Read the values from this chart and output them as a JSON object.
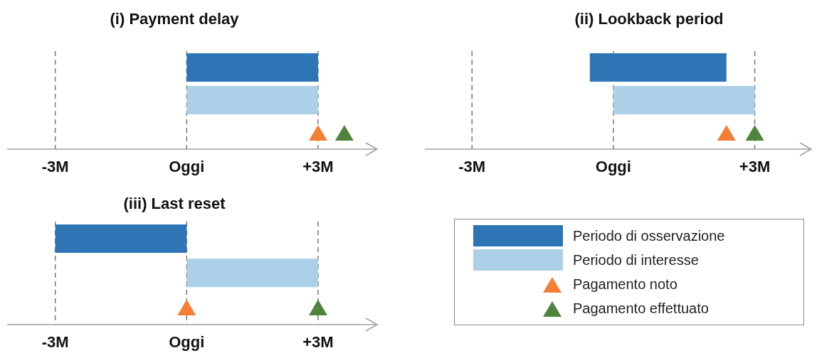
{
  "chart_data": [
    {
      "type": "bar",
      "orientation": "horizontal",
      "title": "(i) Payment delay",
      "categories": [
        null,
        null,
        null
      ],
      "xlim": [
        -4.1,
        4.35
      ],
      "xticks": [
        {
          "value": -3,
          "label": "-3M"
        },
        {
          "value": 0,
          "label": "Oggi"
        },
        {
          "value": 3,
          "label": "+3M"
        }
      ],
      "grid": "x",
      "series": [
        {
          "type": "bar",
          "color": "#2e75b6",
          "values": [
            3,
            null,
            null
          ],
          "base": [
            0,
            null,
            null
          ]
        },
        {
          "type": "bar",
          "color": "#abd0e8",
          "values": [
            null,
            3,
            null
          ],
          "base": [
            null,
            0,
            null
          ]
        },
        {
          "type": "scatter",
          "marker": "triangle",
          "color": "#f47f35",
          "values": [
            null,
            null,
            3
          ]
        },
        {
          "type": "scatter",
          "marker": "triangle",
          "color": "#4e843d",
          "values": [
            null,
            null,
            3.6
          ]
        }
      ]
    },
    {
      "type": "bar",
      "orientation": "horizontal",
      "title": "(ii) Lookback period",
      "categories": [
        null,
        null,
        null
      ],
      "xlim": [
        -4,
        4.2
      ],
      "xticks": [
        {
          "value": -3,
          "label": "-3M"
        },
        {
          "value": 0,
          "label": "Oggi"
        },
        {
          "value": 3,
          "label": "+3M"
        }
      ],
      "grid": "x",
      "series": [
        {
          "type": "bar",
          "color": "#2e75b6",
          "values": [
            2.9,
            null,
            null
          ],
          "base": [
            -0.5,
            null,
            null
          ]
        },
        {
          "type": "bar",
          "color": "#abd0e8",
          "values": [
            null,
            3,
            null
          ],
          "base": [
            null,
            0,
            null
          ]
        },
        {
          "type": "scatter",
          "marker": "triangle",
          "color": "#f47f35",
          "values": [
            null,
            null,
            2.4
          ]
        },
        {
          "type": "scatter",
          "marker": "triangle",
          "color": "#4e843d",
          "values": [
            null,
            null,
            3
          ]
        }
      ]
    },
    {
      "type": "bar",
      "orientation": "horizontal",
      "title": "(iii) Last reset",
      "categories": [
        null,
        null,
        null
      ],
      "xlim": [
        -4.1,
        4.35
      ],
      "xticks": [
        {
          "value": -3,
          "label": "-3M"
        },
        {
          "value": 0,
          "label": "Oggi"
        },
        {
          "value": 3,
          "label": "+3M"
        }
      ],
      "grid": "x",
      "legend": "right",
      "series": [
        {
          "type": "bar",
          "name": "Periodo di osservazione",
          "color": "#2e75b6",
          "values": [
            3,
            null,
            null
          ],
          "base": [
            -3,
            null,
            null
          ]
        },
        {
          "type": "bar",
          "name": "Periodo di interesse",
          "color": "#abd0e8",
          "values": [
            null,
            3,
            null
          ],
          "base": [
            null,
            0,
            null
          ]
        },
        {
          "type": "scatter",
          "name": "Pagamento noto",
          "marker": "triangle",
          "color": "#f47f35",
          "values": [
            null,
            null,
            0
          ]
        },
        {
          "type": "scatter",
          "name": "Pagamento effettuato",
          "marker": "triangle",
          "color": "#4e843d",
          "values": [
            null,
            null,
            3
          ]
        }
      ]
    }
  ]
}
